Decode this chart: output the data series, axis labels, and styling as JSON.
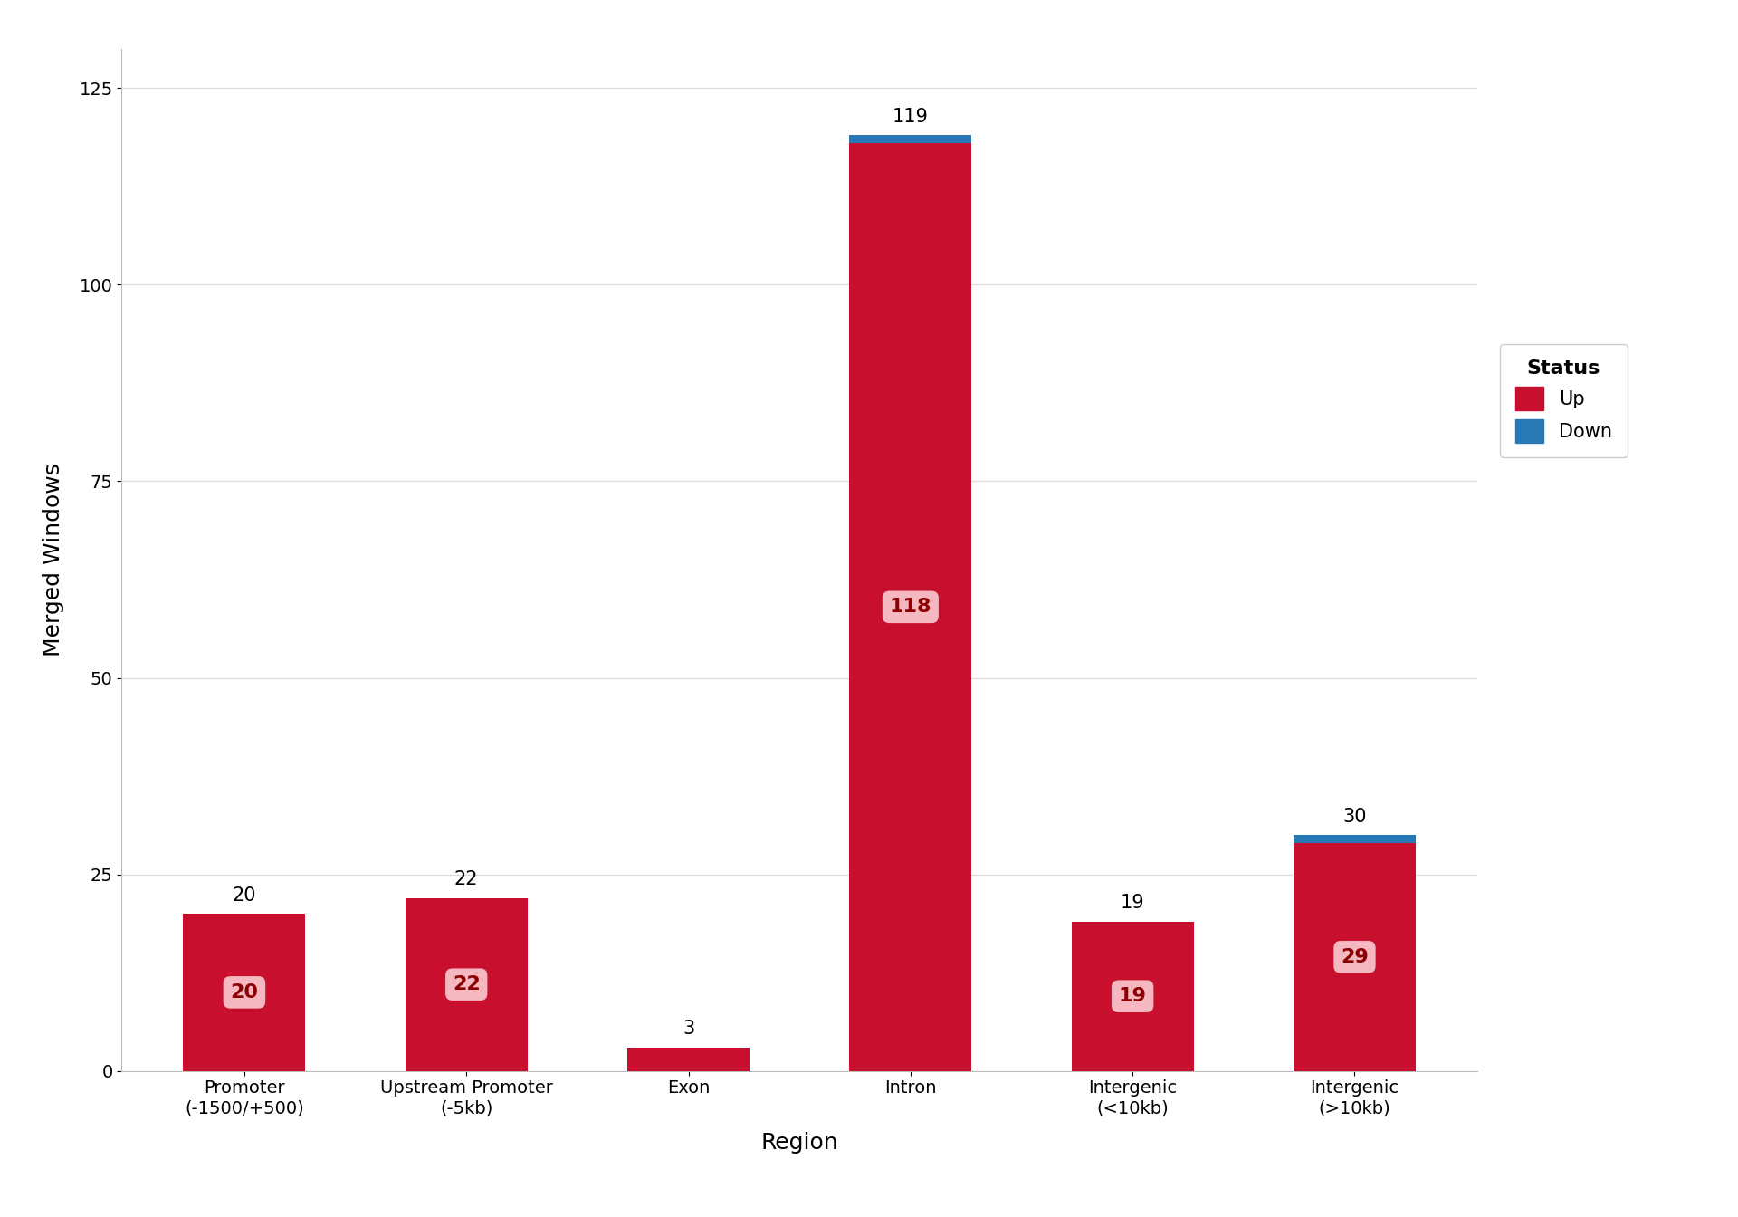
{
  "categories": [
    "Promoter\n(-1500/+500)",
    "Upstream Promoter\n(-5kb)",
    "Exon",
    "Intron",
    "Intergenic\n(<10kb)",
    "Intergenic\n(>10kb)"
  ],
  "up_values": [
    20,
    22,
    3,
    118,
    19,
    29
  ],
  "down_values": [
    0,
    0,
    0,
    1,
    0,
    1
  ],
  "totals": [
    20,
    22,
    3,
    119,
    19,
    30
  ],
  "up_color": "#C8102E",
  "down_color": "#2878B5",
  "up_label_bg": "#F5B8C0",
  "up_label_color": "#8B0000",
  "ylabel": "Merged Windows",
  "xlabel": "Region",
  "legend_title": "Status",
  "legend_up": "Up",
  "legend_down": "Down",
  "ylim": [
    0,
    130
  ],
  "yticks": [
    0,
    25,
    50,
    75,
    100,
    125
  ],
  "grid_color": "#DDDDDD",
  "background_color": "#FFFFFF",
  "bar_width": 0.55,
  "label_fontsize": 16,
  "tick_fontsize": 14,
  "axis_label_fontsize": 18,
  "legend_fontsize": 15,
  "annotation_fontsize": 15,
  "min_bar_for_label": 5
}
